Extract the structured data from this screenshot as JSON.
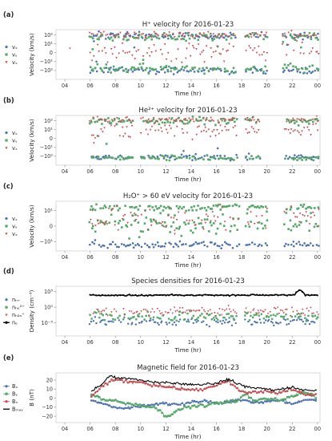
{
  "chart_data": [
    {
      "type": "scatter",
      "panel_label": "(a)",
      "title": "H⁺ velocity for 2016-01-23",
      "xlabel": "Time (hr)",
      "ylabel": "Velocity (km/s)",
      "x_ticks": [
        "04",
        "06",
        "08",
        "10",
        "12",
        "14",
        "16",
        "18",
        "20",
        "22",
        "00"
      ],
      "xlim": [
        3.3,
        24.2
      ],
      "y_scale": "symlog",
      "y_ticks": [
        "10²",
        "10¹",
        "0",
        "−10¹",
        "−10²"
      ],
      "ylim": [
        -3.0,
        2.6
      ],
      "grid": false,
      "legend_position": "left",
      "data_gaps_hr": [
        [
          17.6,
          18.3
        ],
        [
          20.1,
          21.2
        ]
      ],
      "series": [
        {
          "name": "vₓ",
          "color": "#4c72b0",
          "marker": "circle",
          "bands": [
            [
              1.9,
              0.5
            ],
            [
              -2.0,
              0.45
            ]
          ],
          "sparse": [
            [
              6.3,
              1.3
            ],
            [
              6.5,
              -1.0
            ],
            [
              9.5,
              0.6
            ],
            [
              21.6,
              0.9
            ]
          ]
        },
        {
          "name": "vᵧ",
          "color": "#55a868",
          "marker": "square",
          "bands": [
            [
              1.8,
              0.55
            ],
            [
              -1.8,
              0.55
            ]
          ],
          "sparse": [
            [
              6.2,
              0.4
            ],
            [
              10.2,
              -0.8
            ],
            [
              16.1,
              0.7
            ],
            [
              22.7,
              0.6
            ]
          ]
        },
        {
          "name": "vₓ",
          "color": "#c44e52",
          "marker": "triangle-down",
          "bands": [
            [
              2.0,
              0.4
            ],
            [
              0.2,
              1.1
            ]
          ],
          "sparse": [
            [
              4.4,
              0.5
            ],
            [
              6.6,
              0.9
            ],
            [
              13.2,
              1.5
            ],
            [
              23.9,
              0.1
            ]
          ]
        }
      ]
    },
    {
      "type": "scatter",
      "panel_label": "(b)",
      "title": "He²⁺ velocity for 2016-01-23",
      "xlabel": "Time (hr)",
      "ylabel": "Velocity (km/s)",
      "x_ticks": [
        "04",
        "06",
        "08",
        "10",
        "12",
        "14",
        "16",
        "18",
        "20",
        "22",
        "00"
      ],
      "xlim": [
        3.3,
        24.2
      ],
      "y_scale": "symlog",
      "y_ticks": [
        "10²",
        "10¹",
        "0",
        "−10¹",
        "−10²"
      ],
      "ylim": [
        -3.0,
        2.6
      ],
      "grid": false,
      "legend_position": "left",
      "data_gaps_hr": [
        [
          9.5,
          10.0
        ],
        [
          17.7,
          18.3
        ],
        [
          19.5,
          21.3
        ]
      ],
      "series": [
        {
          "name": "vₓ",
          "color": "#4c72b0",
          "marker": "circle",
          "bands": [
            [
              -2.1,
              0.35
            ]
          ],
          "sparse": [
            [
              13.4,
              -1.4
            ],
            [
              16.1,
              -1.1
            ]
          ]
        },
        {
          "name": "vᵧ",
          "color": "#55a868",
          "marker": "square",
          "bands": [
            [
              2.0,
              0.45
            ],
            [
              -2.2,
              0.3
            ]
          ],
          "sparse": [
            [
              6.6,
              0.3
            ],
            [
              7.3,
              -0.6
            ]
          ]
        },
        {
          "name": "vₓ",
          "color": "#c44e52",
          "marker": "triangle-down",
          "bands": [
            [
              2.1,
              0.35
            ],
            [
              0.9,
              1.0
            ]
          ],
          "sparse": [
            [
              6.3,
              -0.5
            ],
            [
              18.8,
              1.3
            ]
          ]
        }
      ]
    },
    {
      "type": "scatter",
      "panel_label": "(c)",
      "title": "H₂O⁺ > 60 eV velocity for 2016-01-23",
      "xlabel": "Time (hr)",
      "ylabel": "Velocity (km/s)",
      "x_ticks": [
        "04",
        "06",
        "08",
        "10",
        "12",
        "14",
        "16",
        "18",
        "20",
        "22",
        "00"
      ],
      "xlim": [
        3.3,
        24.2
      ],
      "y_scale": "symlog",
      "y_ticks": [
        "10¹",
        "0",
        "−10¹"
      ],
      "ylim": [
        -1.6,
        1.6
      ],
      "grid": false,
      "legend_position": "left",
      "data_gaps_hr": [
        [
          17.8,
          18.3
        ],
        [
          20.1,
          21.3
        ]
      ],
      "series": [
        {
          "name": "vₓ",
          "color": "#4c72b0",
          "marker": "circle",
          "bands": [
            [
              -1.2,
              0.22
            ]
          ],
          "sparse": [
            [
              6.4,
              -0.9
            ],
            [
              22.1,
              -1.0
            ]
          ]
        },
        {
          "name": "vᵧ",
          "color": "#55a868",
          "marker": "square",
          "bands": [
            [
              1.2,
              0.25
            ],
            [
              0.2,
              0.8
            ]
          ],
          "sparse": [
            [
              6.5,
              1.4
            ],
            [
              9.1,
              -0.8
            ]
          ]
        },
        {
          "name": "vₓ",
          "color": "#c44e52",
          "marker": "triangle-down",
          "bands": [
            [
              0.5,
              0.9
            ]
          ],
          "sparse": [
            [
              6.2,
              1.0
            ],
            [
              12.7,
              -0.5
            ]
          ]
        }
      ]
    },
    {
      "type": "line",
      "panel_label": "(d)",
      "title": "Species densities for 2016-01-23",
      "xlabel": "Time (hr)",
      "ylabel": "Density (cm⁻³)",
      "x_ticks": [
        "04",
        "06",
        "08",
        "10",
        "12",
        "14",
        "16",
        "18",
        "20",
        "22",
        "00"
      ],
      "xlim": [
        3.3,
        24.2
      ],
      "y_scale": "log",
      "y_ticks": [
        "10³",
        "10⁰",
        "10⁻³"
      ],
      "ylim": [
        -5.5,
        4.0
      ],
      "grid": false,
      "legend_position": "left",
      "series": [
        {
          "name": "nₕ₊",
          "color": "#4c72b0",
          "marker": "circle",
          "log_center": -2.8,
          "spread": 0.9
        },
        {
          "name": "nₕₑ²⁺",
          "color": "#55a868",
          "marker": "square",
          "log_center": -1.8,
          "spread": 1.0
        },
        {
          "name": "nₕ₂ₒ⁺",
          "color": "#c44e52",
          "marker": "triangle-down",
          "log_center": -0.8,
          "spread": 1.0
        },
        {
          "name": "nₑ",
          "color": "#000000",
          "marker": "line-dot",
          "log_center": 2.3,
          "spread": 0.15,
          "peak_at_hr": 22.6,
          "peak_log": 3.3
        }
      ]
    },
    {
      "type": "line",
      "panel_label": "(e)",
      "title": "Magnetic field for 2016-01-23",
      "xlabel": "Time (hr)",
      "ylabel": "B (nT)",
      "x_ticks": [
        "04",
        "06",
        "08",
        "10",
        "12",
        "14",
        "16",
        "18",
        "20",
        "22",
        "00"
      ],
      "xlim": [
        3.3,
        24.2
      ],
      "y_ticks": [
        "20",
        "10",
        "0",
        "−10",
        "−20"
      ],
      "ylim": [
        -27,
        28
      ],
      "grid": false,
      "legend_position": "left",
      "series": [
        {
          "name": "Bₓ",
          "color": "#4c72b0",
          "marker": "circle",
          "x": [
            6.1,
            7.0,
            8.0,
            9.0,
            10.0,
            11.0,
            12.0,
            13.0,
            14.0,
            15.0,
            16.0,
            17.0,
            17.6,
            18.3,
            19.0,
            20.0,
            21.0,
            22.0,
            23.0,
            24.0
          ],
          "y": [
            -2,
            -6,
            -10,
            -11,
            -9,
            -7,
            -5,
            -7,
            -5,
            -3,
            -6,
            -4,
            -2,
            -3,
            -5,
            -4,
            -3,
            -6,
            -2,
            -2
          ]
        },
        {
          "name": "Bᵧ",
          "color": "#55a868",
          "marker": "square",
          "x": [
            6.1,
            7.0,
            8.0,
            9.0,
            10.0,
            11.0,
            11.6,
            12.0,
            12.6,
            13.0,
            14.0,
            15.0,
            16.0,
            17.0,
            17.6,
            18.3,
            19.0,
            20.0,
            21.0,
            22.0,
            23.0,
            24.0
          ],
          "y": [
            4,
            -1,
            -3,
            -6,
            -8,
            -10,
            -14,
            -21,
            -17,
            -12,
            -10,
            -8,
            -6,
            -4,
            -3,
            5,
            -3,
            0,
            -2,
            2,
            6,
            1
          ]
        },
        {
          "name": "Bₓ",
          "color": "#c44e52",
          "marker": "circle",
          "x": [
            6.1,
            7.0,
            8.0,
            9.0,
            10.0,
            11.0,
            12.0,
            13.0,
            14.0,
            15.0,
            16.0,
            17.0,
            17.6,
            18.3,
            19.0,
            20.0,
            21.0,
            22.0,
            23.0,
            24.0
          ],
          "y": [
            1,
            14,
            21,
            18,
            17,
            14,
            13,
            11,
            9,
            10,
            14,
            19,
            11,
            5,
            7,
            8,
            6,
            10,
            4,
            5
          ]
        },
        {
          "name": "Bₘₐᵧ",
          "color": "#000000",
          "marker": "line",
          "x": [
            6.1,
            7.0,
            7.4,
            8.0,
            9.0,
            10.0,
            11.0,
            12.0,
            13.0,
            14.0,
            15.0,
            16.0,
            17.0,
            17.6,
            18.3,
            19.0,
            20.0,
            21.0,
            22.0,
            23.0,
            24.0
          ],
          "y": [
            8,
            16,
            24,
            23,
            22,
            20,
            18,
            17,
            16,
            15,
            15,
            17,
            21,
            16,
            13,
            11,
            10,
            9,
            12,
            9,
            8
          ]
        }
      ]
    }
  ]
}
